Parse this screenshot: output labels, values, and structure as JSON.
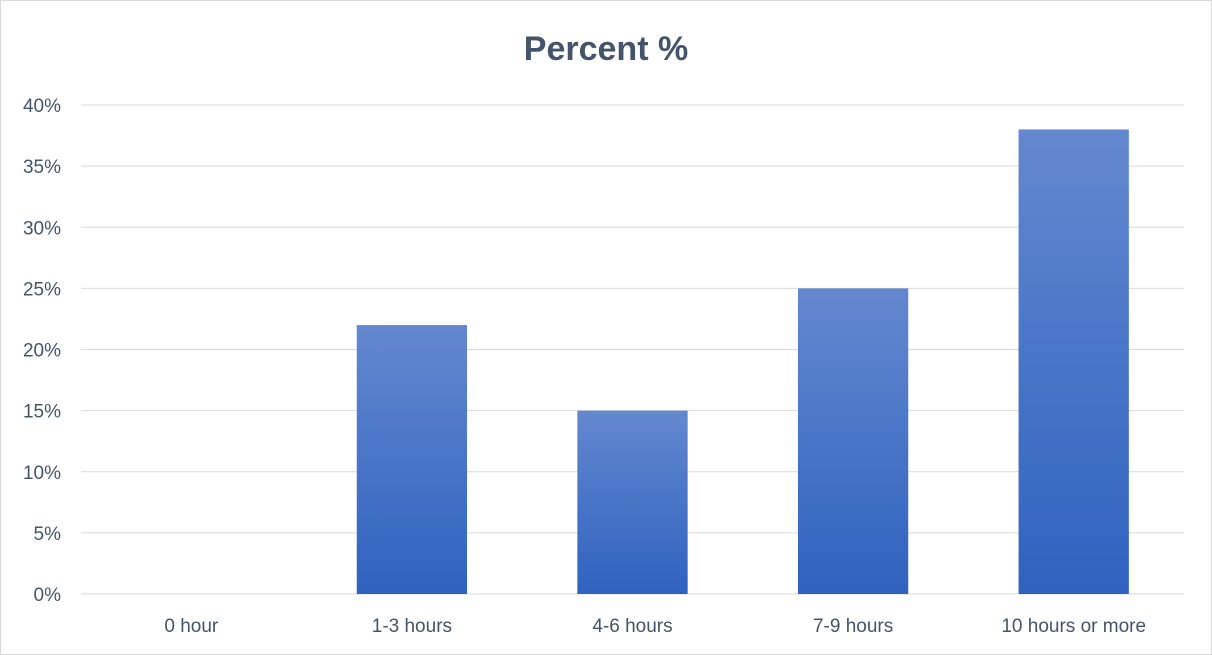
{
  "chart_data": {
    "type": "bar",
    "title": "Percent %",
    "xlabel": "",
    "ylabel": "",
    "categories": [
      "0 hour",
      "1-3 hours",
      "4-6 hours",
      "7-9 hours",
      "10 hours or more"
    ],
    "values": [
      0,
      22,
      15,
      25,
      38
    ],
    "ylim": [
      0,
      40
    ],
    "yticks": [
      0,
      5,
      10,
      15,
      20,
      25,
      30,
      35,
      40
    ],
    "ytick_labels": [
      "0%",
      "5%",
      "10%",
      "15%",
      "20%",
      "25%",
      "30%",
      "35%",
      "40%"
    ],
    "grid": true,
    "legend": "none",
    "colors": {
      "bar_top": "#6388cf",
      "bar_bottom": "#2f62bf",
      "title": "#44546a",
      "axis_text": "#44546a",
      "grid": "#d9d9d9"
    }
  }
}
